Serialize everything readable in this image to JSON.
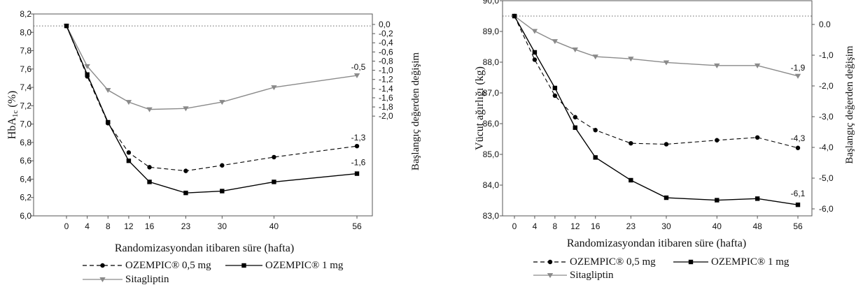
{
  "chart_data": [
    {
      "type": "line",
      "ylabel": "HbA1c (%)",
      "ylabel_main": "HbA",
      "ylabel_sub": "1c",
      "ylabel_unit": " (%)",
      "y2label": "Başlangıç değerden değişim",
      "xlabel": "Randomizasyondan itibaren süre (hafta)",
      "x": [
        0,
        4,
        8,
        12,
        16,
        23,
        30,
        40,
        56
      ],
      "x_tick_labels": [
        "0",
        "4",
        "8",
        "12",
        "16",
        "23",
        "30",
        "40",
        "56"
      ],
      "ylim": [
        6.0,
        8.2
      ],
      "y_ticks": [
        6.0,
        6.2,
        6.4,
        6.6,
        6.8,
        7.0,
        7.2,
        7.4,
        7.6,
        7.8,
        8.0,
        8.2
      ],
      "y_tick_labels": [
        "6,0",
        "6,2",
        "6,4",
        "6,6",
        "6,8",
        "7,0",
        "7,2",
        "7,4",
        "7,6",
        "7,8",
        "8,0",
        "8,2"
      ],
      "y2_ticks": [
        0.0,
        -0.2,
        -0.4,
        -0.6,
        -0.8,
        -1.0,
        -1.2,
        -1.4,
        -1.6,
        -1.8,
        -2.0
      ],
      "y2_tick_labels": [
        "0,0",
        "-0,2",
        "-0,4",
        "-0,6",
        "-0,8",
        "-1,0",
        "-1,2",
        "-1,4",
        "-1,6",
        "-1,8",
        "-2,0"
      ],
      "baseline": 8.07,
      "series": [
        {
          "name": "OZEMPIC® 0,5 mg",
          "style": "dashed",
          "marker": "circle",
          "color": "#000000",
          "values": [
            8.07,
            7.52,
            7.01,
            6.69,
            6.53,
            6.49,
            6.55,
            6.64,
            6.76
          ],
          "end_label": "-1,3"
        },
        {
          "name": "OZEMPIC® 1 mg",
          "style": "solid",
          "marker": "square",
          "color": "#000000",
          "values": [
            8.07,
            7.54,
            7.02,
            6.6,
            6.37,
            6.25,
            6.27,
            6.37,
            6.46
          ],
          "end_label": "-1,6"
        },
        {
          "name": "Sitagliptin",
          "style": "solid",
          "marker": "triangle-down",
          "color": "#8a8a8a",
          "values": [
            8.07,
            7.63,
            7.37,
            7.24,
            7.16,
            7.17,
            7.24,
            7.4,
            7.53
          ],
          "end_label": "-0,5"
        }
      ],
      "legend_placement": "bottom"
    },
    {
      "type": "line",
      "ylabel": "Vücut ağırlığı (kg)",
      "y2label": "Başlangıç değerden değişim",
      "xlabel": "Randomizasyondan itibaren süre (hafta)",
      "x": [
        0,
        4,
        8,
        12,
        16,
        23,
        30,
        40,
        48,
        56
      ],
      "x_tick_labels": [
        "0",
        "4",
        "8",
        "12",
        "16",
        "23",
        "30",
        "40",
        "48",
        "56"
      ],
      "ylim": [
        83.0,
        90.0
      ],
      "y_ticks": [
        83.0,
        84.0,
        85.0,
        86.0,
        87.0,
        88.0,
        89.0,
        90.0
      ],
      "y_tick_labels": [
        "83,0",
        "84,0",
        "85,0",
        "86,0",
        "87,0",
        "88,0",
        "89,0",
        "90,0"
      ],
      "y2_ticks": [
        0.0,
        -1.0,
        -2.0,
        -3.0,
        -4.0,
        -5.0,
        -6.0
      ],
      "y2_tick_labels": [
        "0.0",
        "-1,0",
        "-2,0",
        "-3,0",
        "-4,0",
        "-5,0",
        "-6,0"
      ],
      "baseline": 89.5,
      "series": [
        {
          "name": "OZEMPIC® 0,5 mg",
          "style": "dashed",
          "marker": "circle",
          "color": "#000000",
          "values": [
            89.5,
            88.08,
            86.91,
            86.21,
            85.79,
            85.36,
            85.33,
            85.46,
            85.55,
            85.21
          ],
          "end_label": "-4,3"
        },
        {
          "name": "OZEMPIC® 1 mg",
          "style": "solid",
          "marker": "square",
          "color": "#000000",
          "values": [
            89.5,
            88.32,
            87.16,
            85.87,
            84.9,
            84.16,
            83.59,
            83.51,
            83.56,
            83.36
          ],
          "end_label": "-6,1"
        },
        {
          "name": "Sitagliptin",
          "style": "solid",
          "marker": "triangle-down",
          "color": "#8a8a8a",
          "values": [
            89.5,
            89.01,
            88.68,
            88.41,
            88.18,
            88.11,
            87.99,
            87.89,
            87.89,
            87.55
          ],
          "end_label": "-1,9"
        }
      ],
      "legend_placement": "bottom"
    }
  ]
}
